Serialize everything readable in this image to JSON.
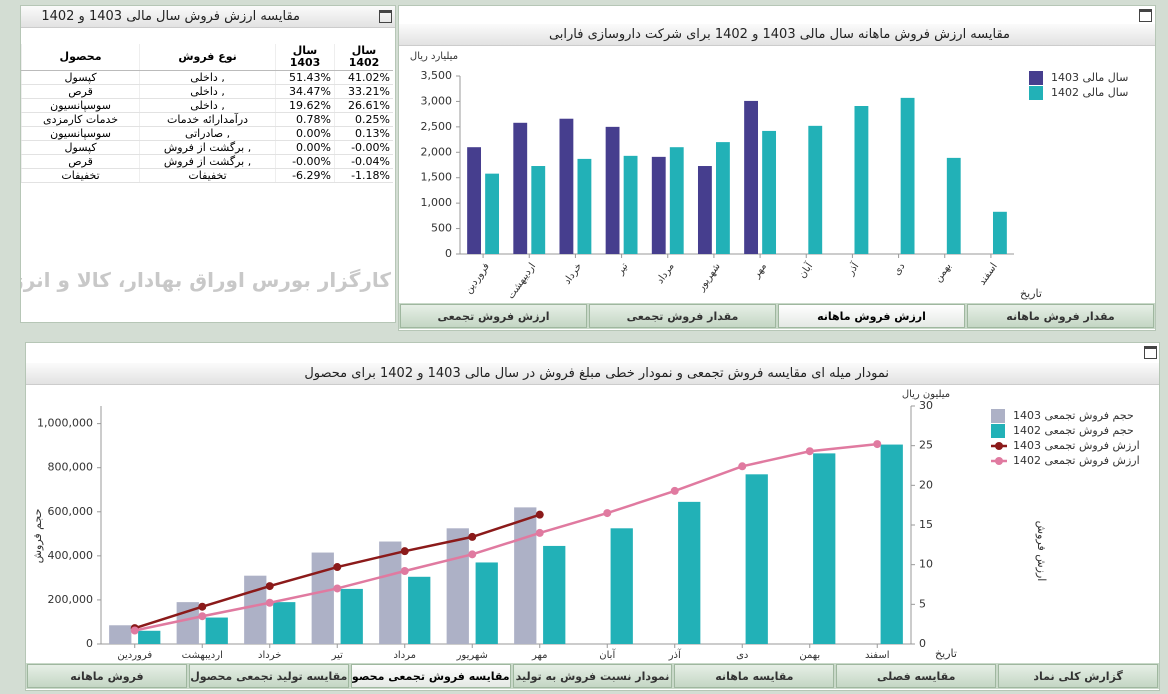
{
  "table_panel": {
    "title": "مقایسه ارزش فروش سال مالی 1403 و 1402",
    "columns": [
      "محصول",
      "نوع فروش",
      "سال 1403",
      "سال 1402"
    ],
    "rows": [
      [
        "کپسول",
        "داخلی ,",
        "51.43%",
        "41.02%"
      ],
      [
        "قرص",
        "داخلی ,",
        "34.47%",
        "33.21%"
      ],
      [
        "سوسپانسیون",
        "داخلی ,",
        "19.62%",
        "26.61%"
      ],
      [
        "خدمات کارمزدی",
        "درآمدارائه خدمات",
        "0.78%",
        "0.25%"
      ],
      [
        "سوسپانسیون",
        "صادراتی ,",
        "0.00%",
        "0.13%"
      ],
      [
        "کپسول",
        "برگشت از فروش ,",
        "0.00%",
        "-0.00%"
      ],
      [
        "قرص",
        "برگشت از فروش ,",
        "-0.00%",
        "-0.04%"
      ],
      [
        "تخفیفات",
        "تخفیفات",
        "-6.29%",
        "-1.18%"
      ]
    ]
  },
  "watermark": "کارگزار بورس اوراق بهادار، کالا و انرژی",
  "chart_data": [
    {
      "type": "bar",
      "title": "مقایسه ارزش فروش ماهانه سال مالی 1403 و 1402 برای شرکت داروسازی فارابی",
      "y_unit": "میلیارد ریال",
      "x_label": "تاریخ",
      "categories": [
        "فروردین",
        "اردیبهشت",
        "خرداد",
        "تیر",
        "مرداد",
        "شهریور",
        "مهر",
        "آبان",
        "آذر",
        "دی",
        "بهمن",
        "اسفند"
      ],
      "series": [
        {
          "name": "سال مالی 1403",
          "color": "#463e8e",
          "values": [
            2100,
            2580,
            2660,
            2500,
            1910,
            1730,
            3010,
            null,
            null,
            null,
            null,
            null
          ]
        },
        {
          "name": "سال مالی 1402",
          "color": "#22b1b7",
          "values": [
            1580,
            1730,
            1870,
            1930,
            2100,
            2200,
            2420,
            2520,
            2910,
            3070,
            1890,
            830
          ]
        }
      ],
      "ylim": [
        0,
        3500
      ],
      "yticks": [
        0,
        500,
        {
          "value": 1000,
          "label": "1,000"
        },
        {
          "value": 1500,
          "label": "1,500"
        },
        {
          "value": 2000,
          "label": "2,000"
        },
        {
          "value": 2500,
          "label": "2,500"
        },
        {
          "value": 3000,
          "label": "3,000"
        },
        {
          "value": 3500,
          "label": "3,500"
        }
      ],
      "grid": false,
      "legend": "top-right",
      "tabs": [
        "ارزش فروش تجمعی",
        "مقدار فروش تجمعی",
        "ارزش فروش ماهانه",
        "مقدار فروش ماهانه"
      ],
      "active_tab": 2
    },
    {
      "type": "combo",
      "title": "نمودار میله ای مقایسه فروش تجمعی و نمودار خطی مبلغ فروش در سال مالی 1403 و 1402 برای محصول",
      "y_label": "حجم فروش",
      "y2_label": "ارزش فروش",
      "y2_unit": "میلیون ریال",
      "x_label": "تاریخ",
      "categories": [
        "فروردین",
        "اردیبهشت",
        "خرداد",
        "تیر",
        "مرداد",
        "شهریور",
        "مهر",
        "آبان",
        "آذر",
        "دی",
        "بهمن",
        "اسفند"
      ],
      "series": [
        {
          "name": "حجم فروش تجمعی 1403",
          "type": "bar",
          "color": "#adb1c6",
          "values": [
            85000,
            190000,
            310000,
            415000,
            465000,
            525000,
            620000,
            null,
            null,
            null,
            null,
            null
          ]
        },
        {
          "name": "حجم فروش تجمعی 1402",
          "type": "bar",
          "color": "#22b1b7",
          "values": [
            60000,
            120000,
            190000,
            250000,
            305000,
            370000,
            445000,
            525000,
            645000,
            770000,
            865000,
            905000
          ]
        },
        {
          "name": "ارزش فروش تجمعی 1403",
          "type": "line",
          "axis": "y2",
          "color": "#8b1a1a",
          "values": [
            2,
            4.7,
            7.3,
            9.7,
            11.7,
            13.5,
            16.3,
            null,
            null,
            null,
            null,
            null
          ]
        },
        {
          "name": "ارزش فروش تجمعی 1402",
          "type": "line",
          "axis": "y2",
          "color": "#e07aa0",
          "values": [
            1.7,
            3.5,
            5.2,
            7,
            9.2,
            11.3,
            14,
            16.5,
            19.3,
            22.4,
            24.3,
            25.2
          ]
        }
      ],
      "ylim": [
        0,
        1080000
      ],
      "yticks": [
        0,
        {
          "value": 200000,
          "label": "200,000"
        },
        {
          "value": 400000,
          "label": "400,000"
        },
        {
          "value": 600000,
          "label": "600,000"
        },
        {
          "value": 800000,
          "label": "800,000"
        },
        {
          "value": 1000000,
          "label": "1,000,000"
        }
      ],
      "y2lim": [
        0,
        30
      ],
      "y2ticks": [
        0,
        5,
        10,
        15,
        20,
        25,
        30
      ],
      "grid": false,
      "legend": "top-right",
      "tabs": [
        "فروش ماهانه",
        "مقایسه تولید تجمعی محصول",
        "مقایسه فروش تجمعی محصول",
        "نمودار نسبت فروش به تولید",
        "مقایسه ماهانه",
        "مقایسه فصلی",
        "گزارش کلی نماد"
      ],
      "active_tab": 2
    }
  ]
}
